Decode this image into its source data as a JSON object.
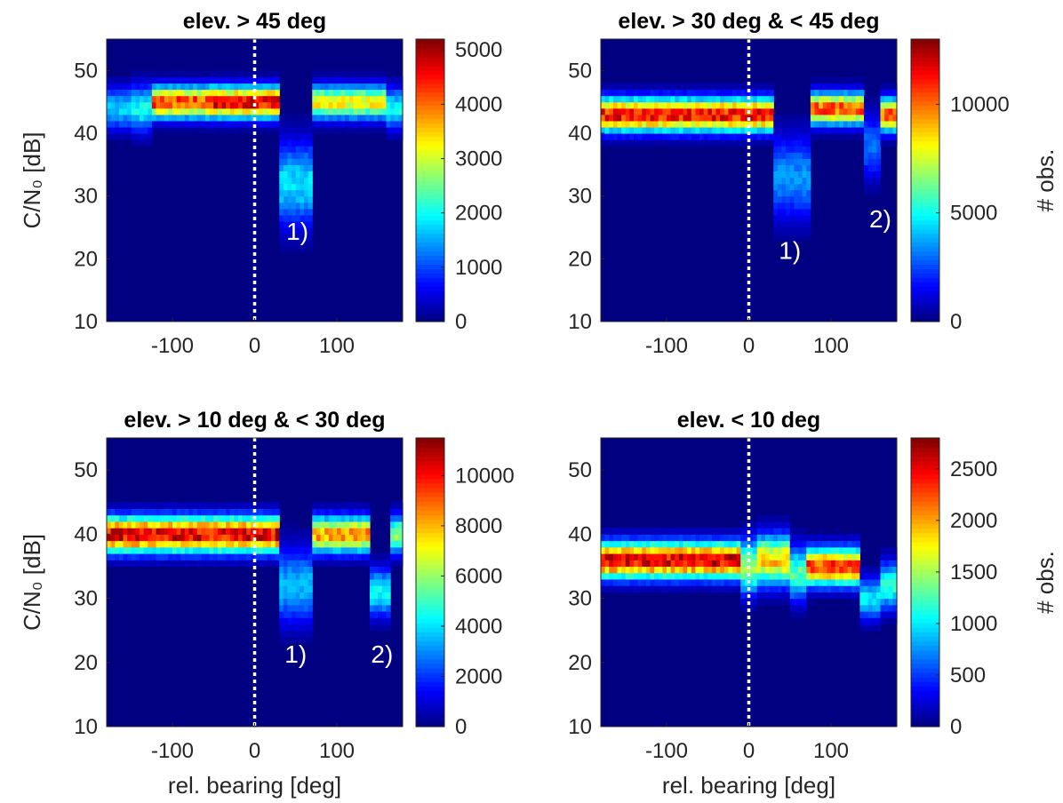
{
  "chart_data": [
    {
      "type": "heatmap",
      "title": "elev. > 45 deg",
      "xlabel": "",
      "ylabel": "C/N₀ [dB]",
      "colorbar_label": "",
      "xlim": [
        -180,
        180
      ],
      "ylim": [
        10,
        55
      ],
      "x_ticks": [
        -100,
        0,
        100
      ],
      "y_ticks": [
        10,
        20,
        30,
        40,
        50
      ],
      "colorbar_ticks": [
        0,
        1000,
        2000,
        3000,
        4000,
        5000
      ],
      "colorbar_range": [
        0,
        5200
      ],
      "reference_line_x": 0,
      "colormap": "jet",
      "segments": [
        {
          "x0": -180,
          "x1": -150,
          "center": 44,
          "width": 2.3,
          "peak": 1700
        },
        {
          "x0": -150,
          "x1": -125,
          "center": 44,
          "width": 2.5,
          "peak": 2000
        },
        {
          "x0": -125,
          "x1": -60,
          "center": 45,
          "width": 1.7,
          "peak": 4300
        },
        {
          "x0": -60,
          "x1": 30,
          "center": 45,
          "width": 1.7,
          "peak": 4700
        },
        {
          "x0": 30,
          "x1": 70,
          "center": 32,
          "width": 4.5,
          "peak": 1800
        },
        {
          "x0": 70,
          "x1": 160,
          "center": 45,
          "width": 1.8,
          "peak": 3300
        },
        {
          "x0": 160,
          "x1": 180,
          "center": 44,
          "width": 2.2,
          "peak": 2000
        }
      ],
      "annotations": [
        {
          "text": "1)",
          "x": 52,
          "y": 23
        }
      ]
    },
    {
      "type": "heatmap",
      "title": "elev. > 30 deg & < 45 deg",
      "xlabel": "",
      "ylabel": "",
      "colorbar_label": "# obs.",
      "xlim": [
        -180,
        180
      ],
      "ylim": [
        10,
        55
      ],
      "x_ticks": [
        -100,
        0,
        100
      ],
      "y_ticks": [
        10,
        20,
        30,
        40,
        50
      ],
      "colorbar_ticks": [
        0,
        5000,
        10000
      ],
      "colorbar_range": [
        0,
        13000
      ],
      "reference_line_x": 0,
      "colormap": "jet",
      "segments": [
        {
          "x0": -180,
          "x1": 30,
          "center": 43,
          "width": 1.8,
          "peak": 11500
        },
        {
          "x0": 30,
          "x1": 75,
          "center": 33,
          "width": 4.5,
          "peak": 3500
        },
        {
          "x0": 75,
          "x1": 140,
          "center": 44,
          "width": 1.7,
          "peak": 10500
        },
        {
          "x0": 140,
          "x1": 160,
          "center": 38,
          "width": 3.5,
          "peak": 3000
        },
        {
          "x0": 160,
          "x1": 180,
          "center": 43,
          "width": 1.8,
          "peak": 10500
        }
      ],
      "annotations": [
        {
          "text": "1)",
          "x": 50,
          "y": 20
        },
        {
          "text": "2)",
          "x": 160,
          "y": 25
        }
      ]
    },
    {
      "type": "heatmap",
      "title": "elev. > 10 deg & < 30 deg",
      "xlabel": "rel. bearing [deg]",
      "ylabel": "C/N₀ [dB]",
      "colorbar_label": "",
      "xlim": [
        -180,
        180
      ],
      "ylim": [
        10,
        55
      ],
      "x_ticks": [
        -100,
        0,
        100
      ],
      "y_ticks": [
        10,
        20,
        30,
        40,
        50
      ],
      "colorbar_ticks": [
        0,
        2000,
        4000,
        6000,
        8000,
        10000
      ],
      "colorbar_range": [
        0,
        11500
      ],
      "reference_line_x": 0,
      "colormap": "jet",
      "segments": [
        {
          "x0": -180,
          "x1": 30,
          "center": 40,
          "width": 1.9,
          "peak": 10500
        },
        {
          "x0": 30,
          "x1": 70,
          "center": 32,
          "width": 4.0,
          "peak": 3500
        },
        {
          "x0": 70,
          "x1": 140,
          "center": 40,
          "width": 1.9,
          "peak": 8500
        },
        {
          "x0": 140,
          "x1": 165,
          "center": 31,
          "width": 2.5,
          "peak": 4500
        },
        {
          "x0": 165,
          "x1": 180,
          "center": 40,
          "width": 2.0,
          "peak": 6000
        }
      ],
      "annotations": [
        {
          "text": "1)",
          "x": 50,
          "y": 20
        },
        {
          "text": "2)",
          "x": 155,
          "y": 20
        }
      ]
    },
    {
      "type": "heatmap",
      "title": "elev. < 10 deg",
      "xlabel": "rel. bearing [deg]",
      "ylabel": "",
      "colorbar_label": "# obs.",
      "xlim": [
        -180,
        180
      ],
      "ylim": [
        10,
        55
      ],
      "x_ticks": [
        -100,
        0,
        100
      ],
      "y_ticks": [
        10,
        20,
        30,
        40,
        50
      ],
      "colorbar_ticks": [
        0,
        500,
        1000,
        1500,
        2000,
        2500
      ],
      "colorbar_range": [
        0,
        2800
      ],
      "reference_line_x": 0,
      "colormap": "jet",
      "segments": [
        {
          "x0": -180,
          "x1": -10,
          "center": 36,
          "width": 1.9,
          "peak": 2600
        },
        {
          "x0": -10,
          "x1": 10,
          "center": 35,
          "width": 2.8,
          "peak": 1500
        },
        {
          "x0": 10,
          "x1": 50,
          "center": 36,
          "width": 2.6,
          "peak": 1900
        },
        {
          "x0": 50,
          "x1": 70,
          "center": 34,
          "width": 2.8,
          "peak": 1300
        },
        {
          "x0": 70,
          "x1": 135,
          "center": 35,
          "width": 2.0,
          "peak": 2300
        },
        {
          "x0": 135,
          "x1": 160,
          "center": 30,
          "width": 2.2,
          "peak": 1000
        },
        {
          "x0": 160,
          "x1": 180,
          "center": 32,
          "width": 2.5,
          "peak": 1200
        }
      ],
      "annotations": []
    }
  ]
}
